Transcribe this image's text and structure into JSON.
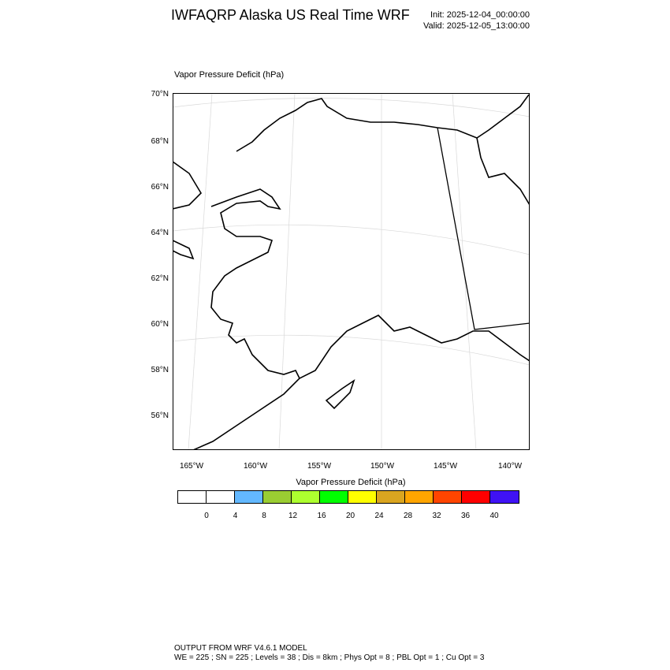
{
  "header": {
    "title": "IWFAQRP Alaska US Real Time WRF",
    "init": "Init: 2025-12-04_00:00:00",
    "valid": "Valid: 2025-12-05_13:00:00"
  },
  "field_label": "Vapor Pressure Deficit   (hPa)",
  "map": {
    "region": "Alaska",
    "lat_labels": [
      "70°N",
      "68°N",
      "66°N",
      "64°N",
      "62°N",
      "60°N",
      "58°N",
      "56°N"
    ],
    "lon_labels": [
      "165°W",
      "160°W",
      "155°W",
      "150°W",
      "145°W",
      "140°W"
    ],
    "coastline_color": "#000000",
    "graticule_color": "#d0d0d0"
  },
  "colorbar": {
    "title": "Vapor Pressure Deficit  (hPa)",
    "labels": [
      "0",
      "4",
      "8",
      "12",
      "16",
      "20",
      "24",
      "28",
      "32",
      "36",
      "40"
    ],
    "colors": [
      "#ffffff",
      "#ffffff",
      "#63b8ff",
      "#9acd32",
      "#adff2f",
      "#00ff00",
      "#ffff00",
      "#daa520",
      "#ffa500",
      "#ff4500",
      "#ff0000",
      "#3f12f5"
    ]
  },
  "footer": {
    "line1": "OUTPUT FROM WRF V4.6.1 MODEL",
    "line2": "WE = 225 ; SN = 225 ; Levels = 38 ; Dis = 8km ; Phys Opt = 8 ; PBL Opt = 1 ; Cu Opt = 3"
  }
}
